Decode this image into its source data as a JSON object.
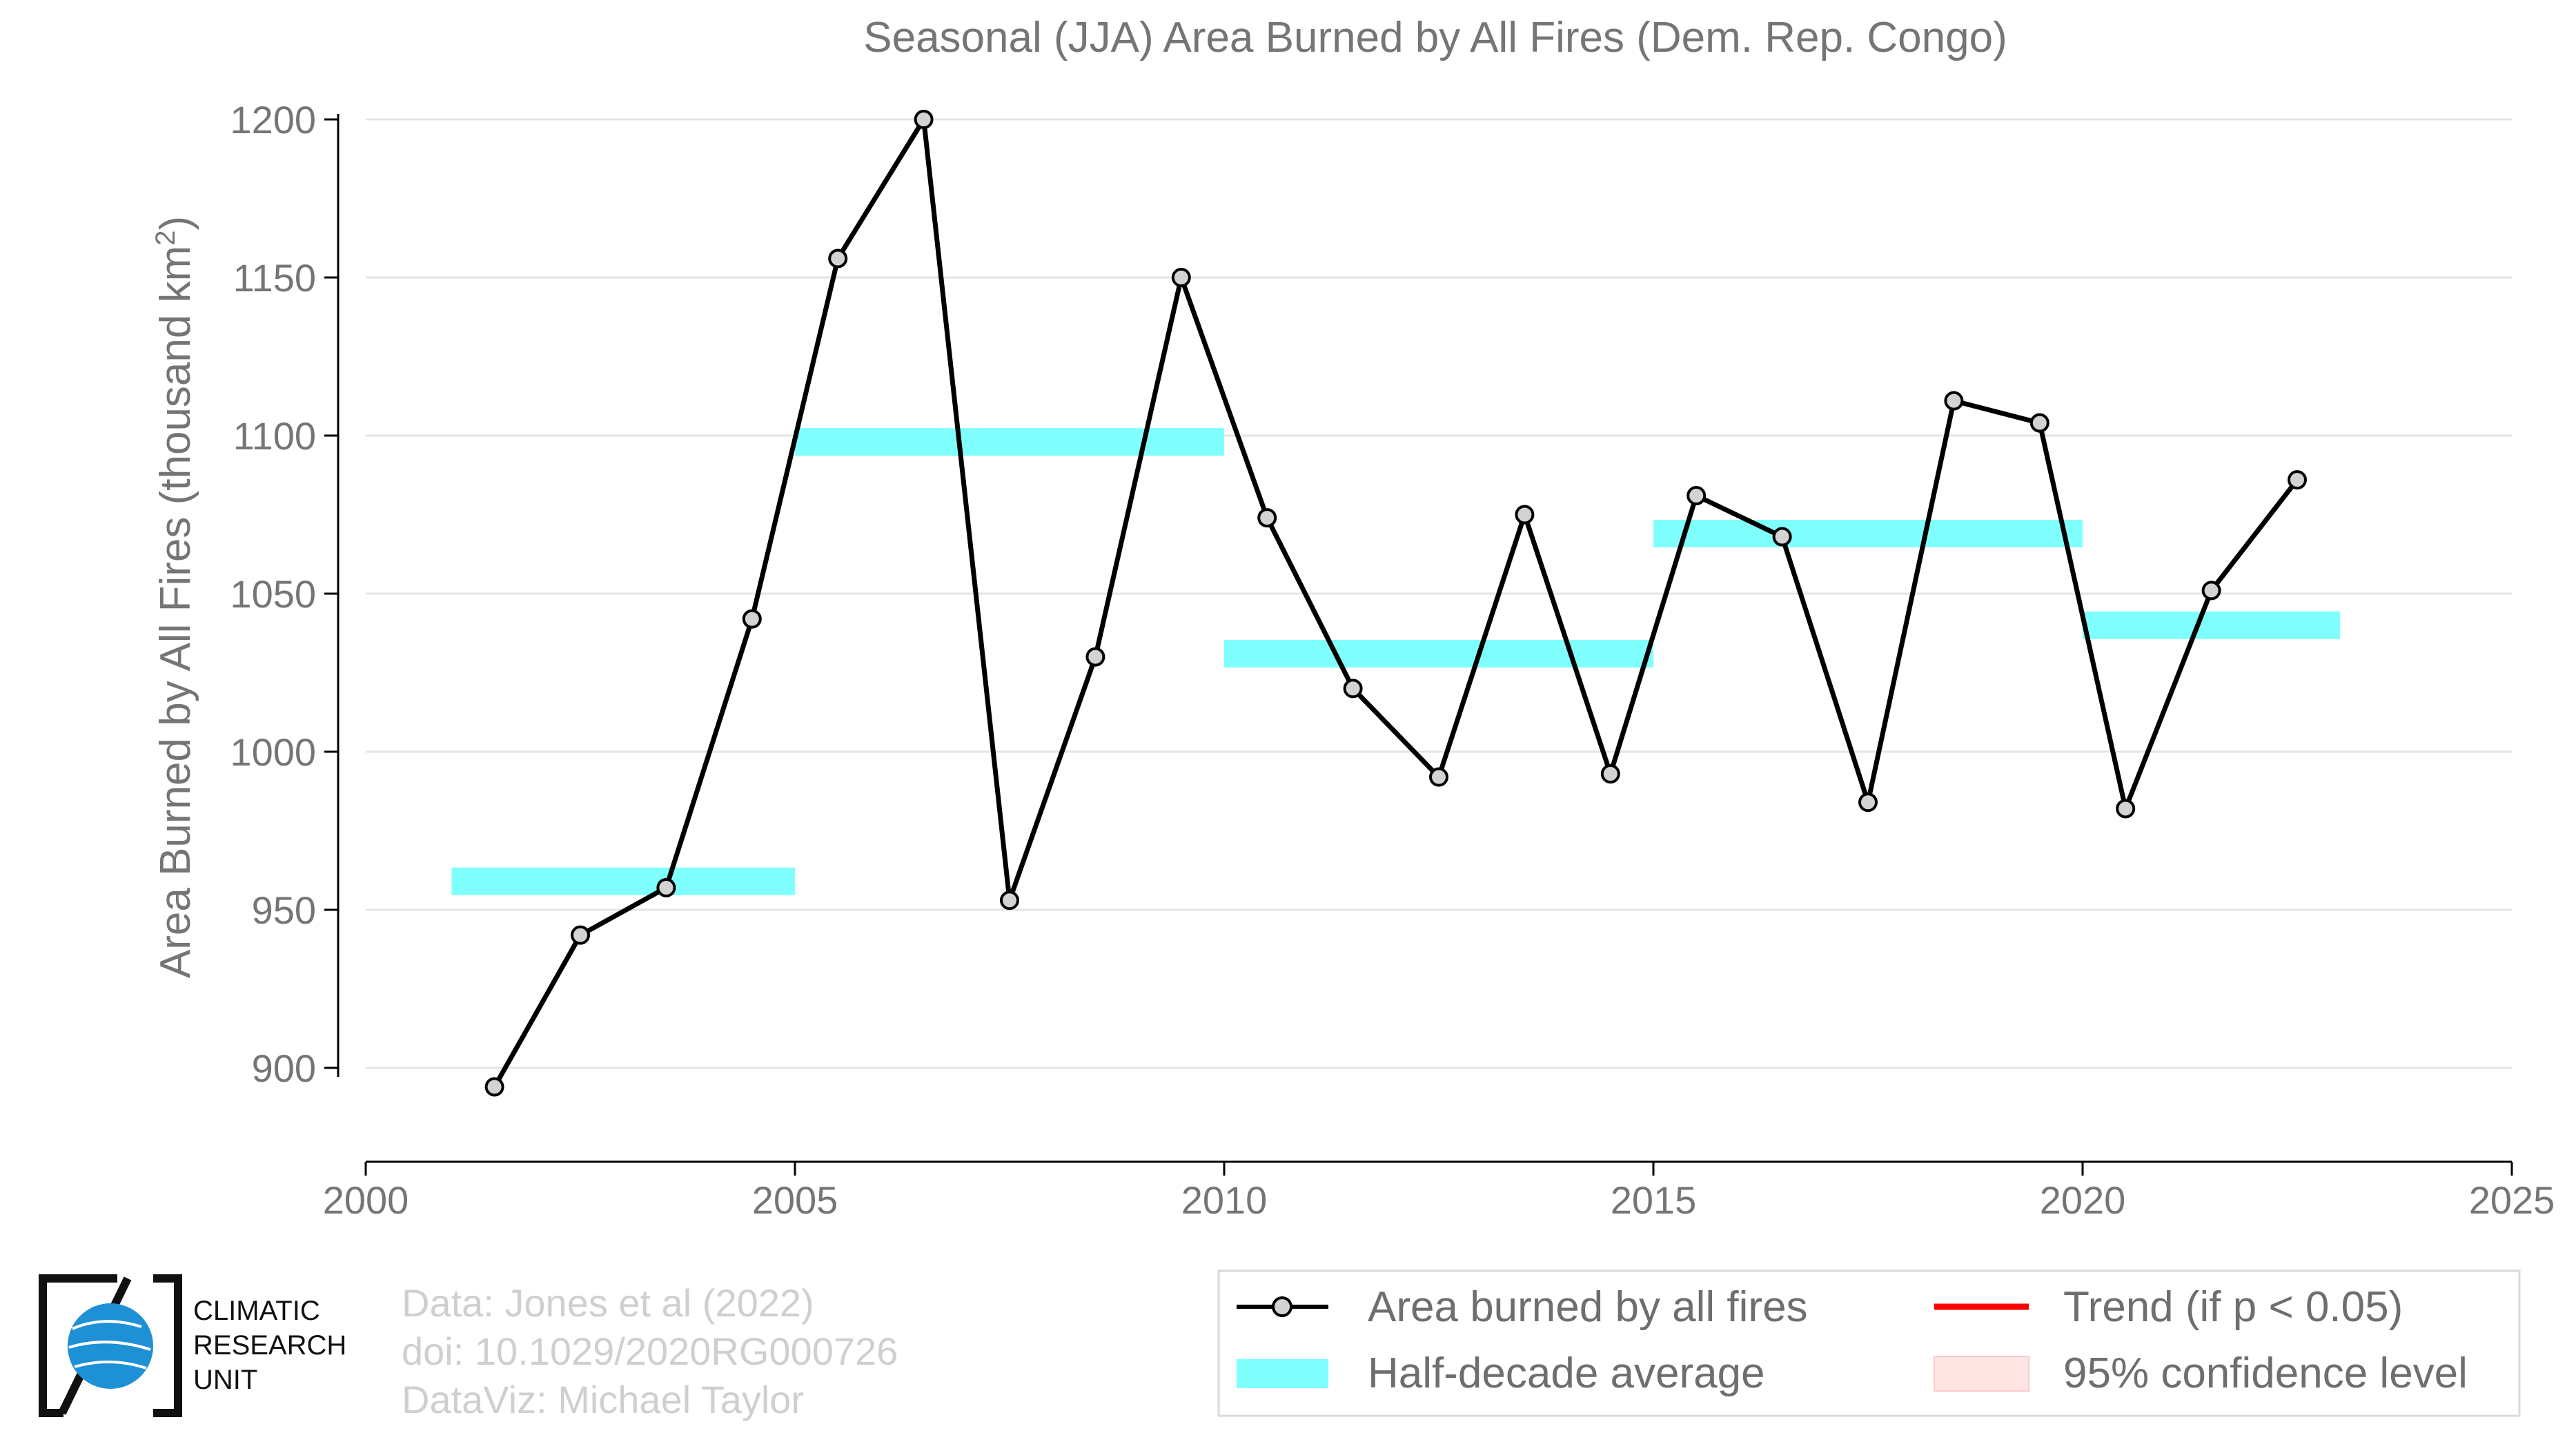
{
  "chart_data": {
    "type": "line",
    "title": "Seasonal (JJA) Area Burned by All Fires (Dem. Rep. Congo)",
    "xlabel": "",
    "ylabel": "Area Burned by All Fires (thousand km",
    "ylabel_sup": "2",
    "ylabel_end": ")",
    "xlim": [
      2000,
      2025
    ],
    "ylim": [
      870,
      1205
    ],
    "x_ticks": [
      2000,
      2005,
      2010,
      2015,
      2020,
      2025
    ],
    "y_ticks": [
      900,
      950,
      1000,
      1050,
      1100,
      1150,
      1200
    ],
    "grid": "horizontal",
    "legend_position": "bottom-right",
    "series": [
      {
        "name": "Area burned by all fires",
        "type": "line",
        "color": "#000000",
        "marker_color": "#d3d3d3",
        "x": [
          2001.5,
          2002.5,
          2003.5,
          2004.5,
          2005.5,
          2006.5,
          2007.5,
          2008.5,
          2009.5,
          2010.5,
          2011.5,
          2012.5,
          2013.5,
          2014.5,
          2015.5,
          2016.5,
          2017.5,
          2018.5,
          2019.5,
          2020.5,
          2021.5,
          2022.5
        ],
        "y": [
          894,
          942,
          957,
          1042,
          1156,
          1200,
          953,
          1030,
          1150,
          1074,
          1020,
          992,
          1075,
          993,
          1081,
          1068,
          984,
          1111,
          1104,
          982,
          1051,
          1086
        ]
      },
      {
        "name": "Half-decade average",
        "type": "segments",
        "color": "#80ffff",
        "segments": [
          {
            "x0": 2001,
            "x1": 2005,
            "y": 959
          },
          {
            "x0": 2005,
            "x1": 2010,
            "y": 1098
          },
          {
            "x0": 2010,
            "x1": 2015,
            "y": 1031
          },
          {
            "x0": 2015,
            "x1": 2020,
            "y": 1069
          },
          {
            "x0": 2020,
            "x1": 2023,
            "y": 1040
          }
        ]
      }
    ],
    "legend": [
      {
        "key": "line",
        "label": "Area burned by all fires"
      },
      {
        "key": "trend",
        "label": "Trend (if p < 0.05)",
        "color": "#ff0000"
      },
      {
        "key": "avg",
        "label": "Half-decade average",
        "color": "#80ffff"
      },
      {
        "key": "ci",
        "label": "95% confidence level",
        "color": "#ffe4e4"
      }
    ]
  },
  "credits": {
    "line1": "Data: Jones et al (2022)",
    "line2": "doi: 10.1029/2020RG000726",
    "line3": "DataViz: Michael Taylor"
  },
  "logo": {
    "line1": "CLIMATIC",
    "line2": "RESEARCH",
    "line3": "UNIT",
    "color": "#1e90d6"
  }
}
